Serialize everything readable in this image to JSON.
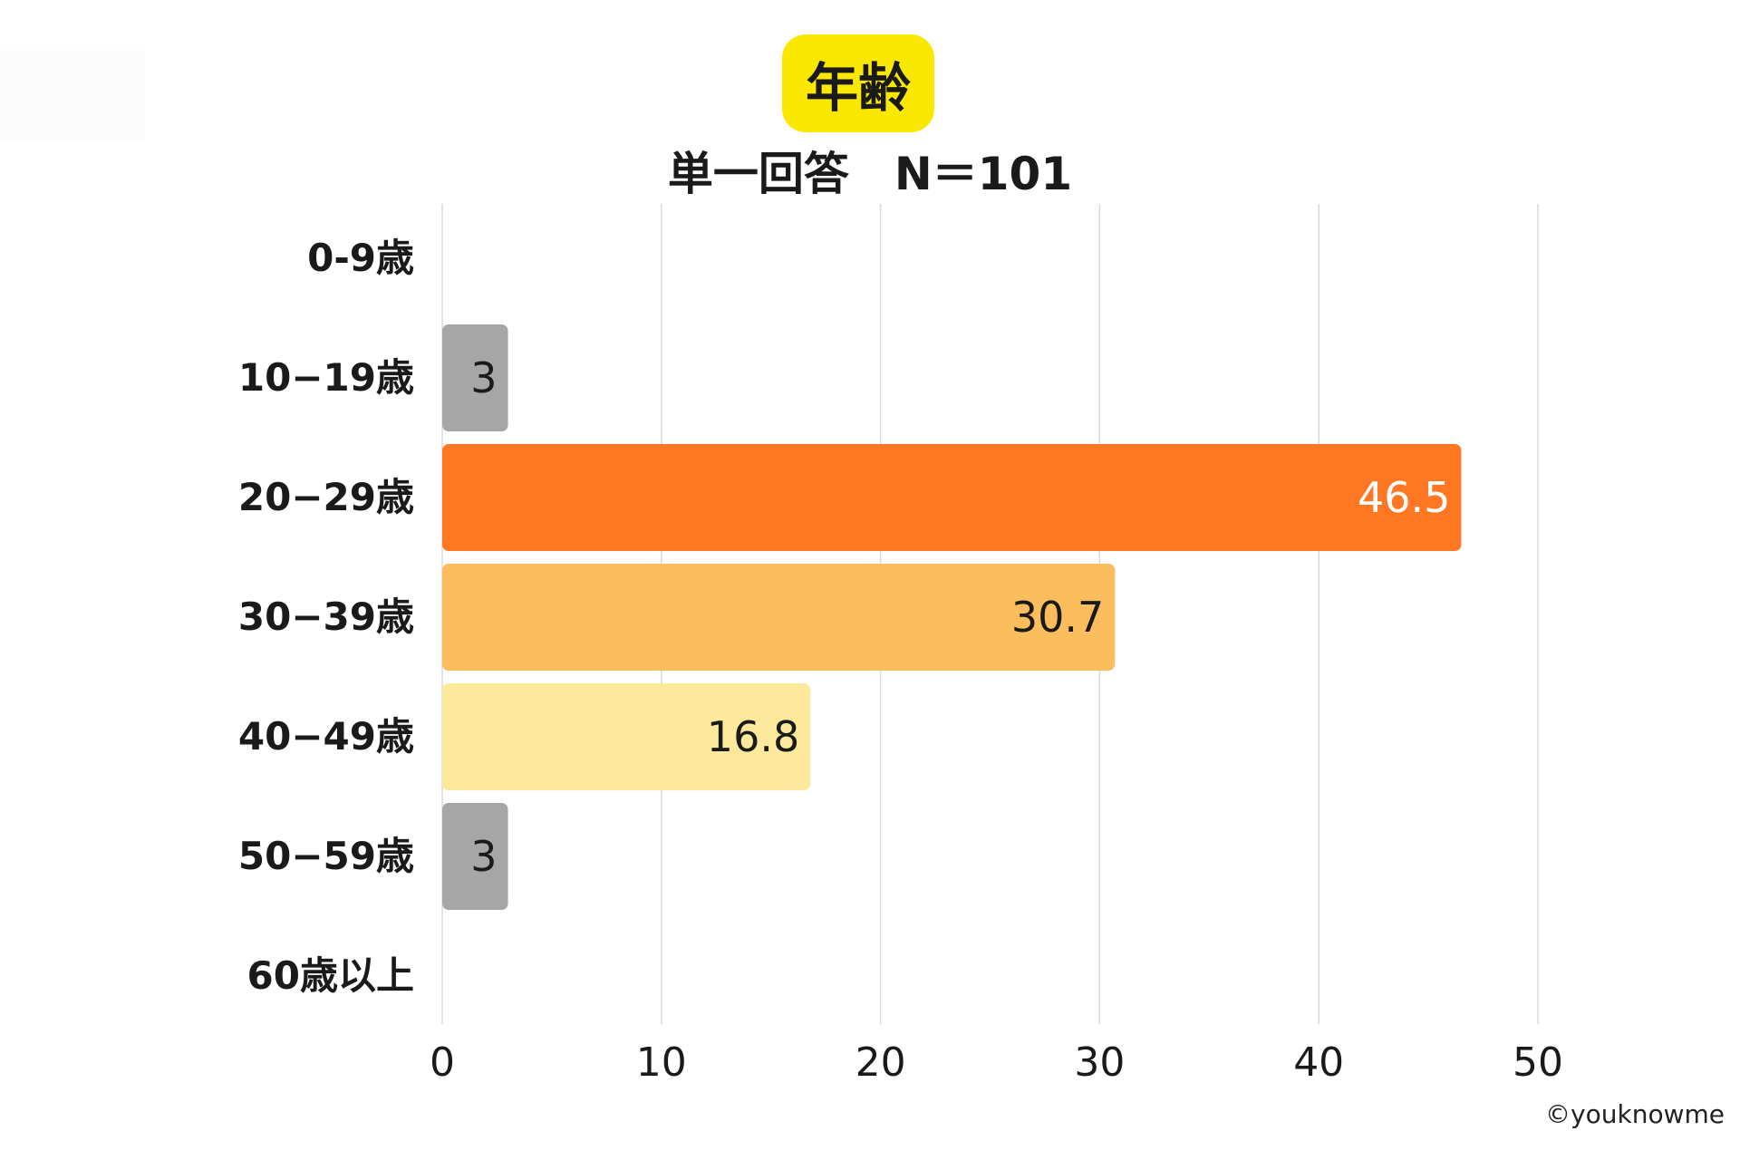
{
  "title": "年齢",
  "subtitle": "単一回答　N＝101",
  "watermark": "©youknowme",
  "colors": {
    "title_badge": "#fbe800",
    "grid": "#d9d9d9",
    "gray_bar": "#a6a6a6",
    "dark_orange": "#ff7722",
    "light_orange": "#fcbd5c",
    "pale_yellow": "#fde99b"
  },
  "chart_data": {
    "type": "bar",
    "orientation": "horizontal",
    "categories": [
      "0-9歳",
      "10−19歳",
      "20−29歳",
      "30−39歳",
      "40−49歳",
      "50−59歳",
      "60歳以上"
    ],
    "values": [
      0,
      3,
      46.5,
      30.7,
      16.8,
      3,
      0
    ],
    "data_labels": [
      "",
      "3",
      "46.5",
      "30.7",
      "16.8",
      "3",
      ""
    ],
    "bar_colors": [
      "#a6a6a6",
      "#a6a6a6",
      "#ff7722",
      "#fcbd5c",
      "#fde99b",
      "#a6a6a6",
      "#a6a6a6"
    ],
    "label_colors": [
      "#1a1a1a",
      "#1a1a1a",
      "#ffffff",
      "#1a1a1a",
      "#1a1a1a",
      "#1a1a1a",
      "#1a1a1a"
    ],
    "xlim": [
      0,
      50
    ],
    "xticks": [
      "0",
      "10",
      "20",
      "30",
      "40",
      "50"
    ],
    "grid": true,
    "legend": "none"
  }
}
